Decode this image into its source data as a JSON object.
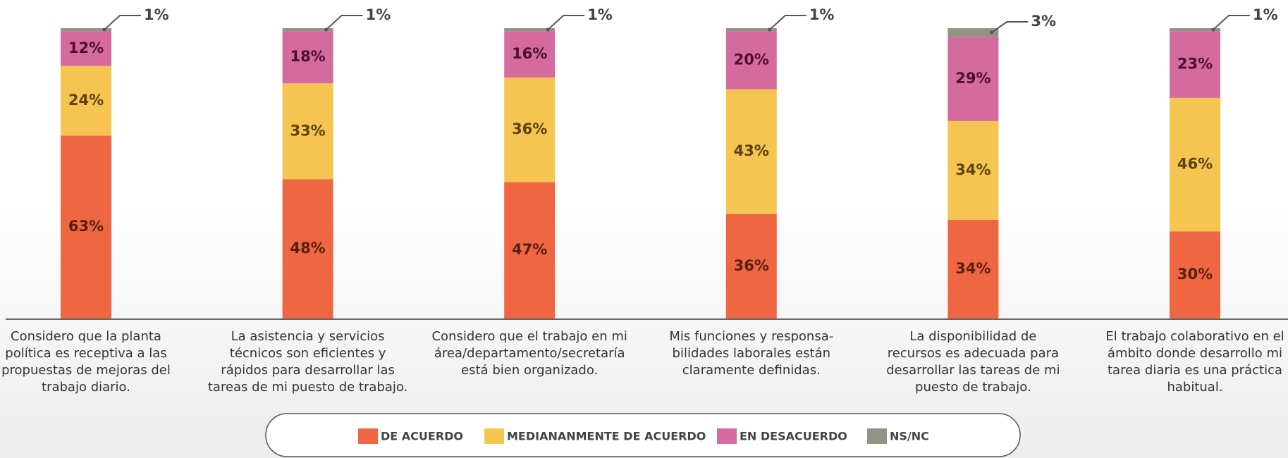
{
  "chart_data": {
    "type": "stacked_bar",
    "categories": [
      "Considero que la planta\npolítica es receptiva a las\npropuestas de mejoras del\ntrabajo diario.",
      "La asistencia y servicios\ntécnicos son eficientes y\nrápidos para desarrollar las\ntareas de mi puesto de trabajo.",
      "Considero que el trabajo en mi\nárea/departamento/secretaría\nestá bien organizado.",
      "Mis funciones y responsa-\nbilidades laborales están\nclaramente definidas.",
      "La disponibilidad de\nrecursos es adecuada para\ndesarrollar las tareas de mi\npuesto de trabajo.",
      "El trabajo colaborativo en el\námbito donde desarrollo mi\ntarea diaria es una práctica\nhabitual."
    ],
    "series": [
      {
        "name": "DE ACUERDO",
        "color": "#ee6742",
        "values": [
          63,
          48,
          47,
          36,
          34,
          30
        ],
        "value_labels": [
          "63%",
          "48%",
          "47%",
          "36%",
          "34%",
          "30%"
        ]
      },
      {
        "name": "MEDIANANMENTE DE ACUERDO",
        "color": "#f5c451",
        "values": [
          24,
          33,
          36,
          43,
          34,
          46
        ],
        "value_labels": [
          "24%",
          "33%",
          "36%",
          "43%",
          "34%",
          "46%"
        ]
      },
      {
        "name": "EN DESACUERDO",
        "color": "#d56a9e",
        "values": [
          12,
          18,
          16,
          20,
          29,
          23
        ],
        "value_labels": [
          "12%",
          "18%",
          "16%",
          "20%",
          "29%",
          "23%"
        ]
      },
      {
        "name": "NS/NC",
        "color": "#8f9582",
        "values": [
          1,
          1,
          1,
          1,
          3,
          1
        ],
        "value_labels": [
          "1%",
          "1%",
          "1%",
          "1%",
          "3%",
          "1%"
        ]
      }
    ],
    "ylim": [
      0,
      100
    ]
  }
}
